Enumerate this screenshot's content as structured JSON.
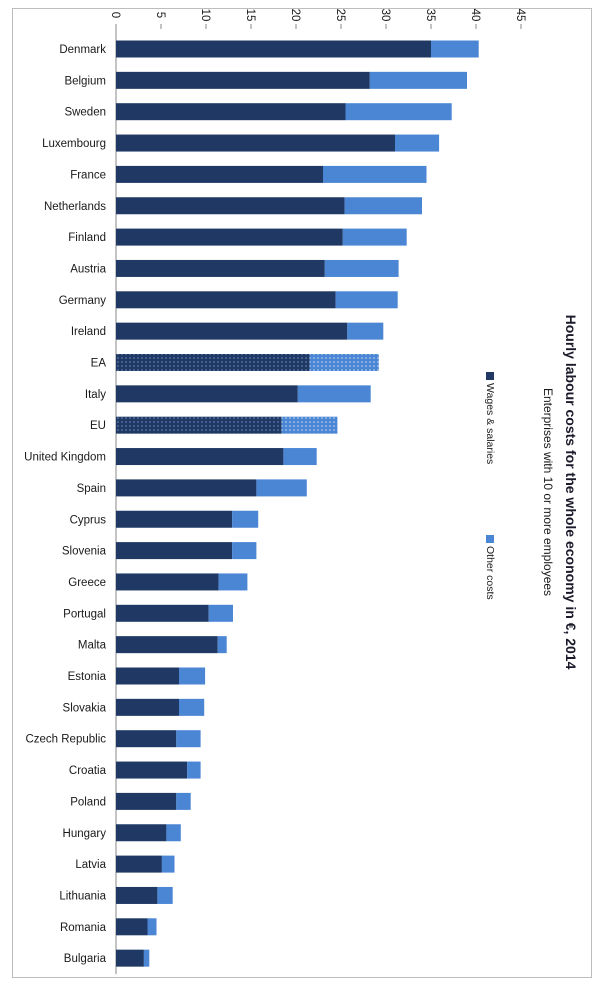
{
  "chart_data": {
    "type": "bar",
    "orientation": "horizontal-stacked",
    "title": "Hourly labour costs for the whole economy in €, 2014",
    "subtitle": "Enterprises with 10 or more employees",
    "xlim": [
      0,
      45
    ],
    "xticks": [
      "0",
      "5",
      "10",
      "15",
      "20",
      "25",
      "30",
      "35",
      "40",
      "45"
    ],
    "categories": [
      "Denmark",
      "Belgium",
      "Sweden",
      "Luxembourg",
      "France",
      "Netherlands",
      "Finland",
      "Austria",
      "Germany",
      "Ireland",
      "EA",
      "Italy",
      "EU",
      "United Kingdom",
      "Spain",
      "Cyprus",
      "Slovenia",
      "Greece",
      "Portugal",
      "Malta",
      "Estonia",
      "Slovakia",
      "Czech Republic",
      "Croatia",
      "Poland",
      "Hungary",
      "Latvia",
      "Lithuania",
      "Romania",
      "Bulgaria"
    ],
    "series": [
      {
        "name": "Wages & salaries",
        "color": "#1f3864",
        "values": [
          35.0,
          28.2,
          25.5,
          31.0,
          23.0,
          25.4,
          25.2,
          23.2,
          24.4,
          25.7,
          21.5,
          20.2,
          18.4,
          18.6,
          15.6,
          12.9,
          12.9,
          11.4,
          10.3,
          11.3,
          7.0,
          7.0,
          6.7,
          7.9,
          6.7,
          5.6,
          5.1,
          4.6,
          3.5,
          3.1
        ]
      },
      {
        "name": "Other costs",
        "color": "#4a86d4",
        "values": [
          5.3,
          10.8,
          11.8,
          4.9,
          11.5,
          8.6,
          7.1,
          8.2,
          6.9,
          4.0,
          7.7,
          8.1,
          6.2,
          3.7,
          5.6,
          2.9,
          2.7,
          3.2,
          2.7,
          1.0,
          2.9,
          2.8,
          2.7,
          1.5,
          1.6,
          1.6,
          1.4,
          1.7,
          1.0,
          0.6
        ]
      }
    ],
    "patterned_categories": [
      "EA",
      "EU"
    ],
    "grid": false,
    "legend_position": "right"
  }
}
